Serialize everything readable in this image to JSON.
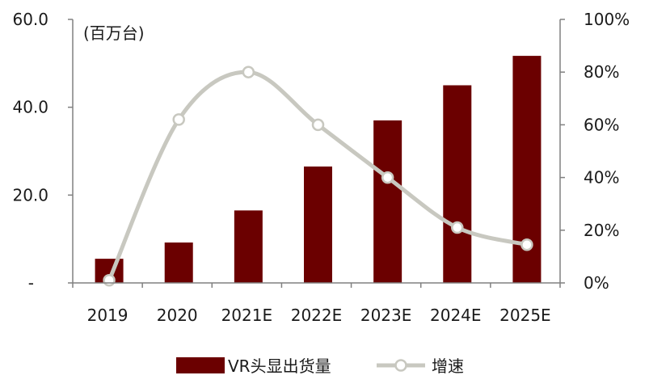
{
  "chart_data": {
    "type": "bar",
    "categories": [
      "2019",
      "2020",
      "2021E",
      "2022E",
      "2023E",
      "2024E",
      "2025E"
    ],
    "series": [
      {
        "name": "VR头显出货量",
        "type": "bar",
        "axis": "left",
        "color": "#6b0000",
        "values": [
          5.5,
          9.2,
          16.5,
          26.5,
          37.0,
          45.0,
          51.7
        ]
      },
      {
        "name": "增速",
        "type": "line",
        "axis": "right",
        "color": "#c8c8c0",
        "values": [
          0.01,
          0.62,
          0.8,
          0.6,
          0.4,
          0.21,
          0.145
        ]
      }
    ],
    "y_left": {
      "min": 0,
      "max": 60,
      "ticks": [
        0,
        20,
        40,
        60
      ],
      "tick_labels": [
        "-",
        "20.0",
        "40.0",
        "60.0"
      ],
      "unit_label": "(百万台)"
    },
    "y_right": {
      "min": 0,
      "max": 1,
      "ticks": [
        0,
        0.2,
        0.4,
        0.6,
        0.8,
        1.0
      ],
      "tick_labels": [
        "0%",
        "20%",
        "40%",
        "60%",
        "80%",
        "100%"
      ]
    },
    "legend_position": "bottom",
    "grid": false
  }
}
